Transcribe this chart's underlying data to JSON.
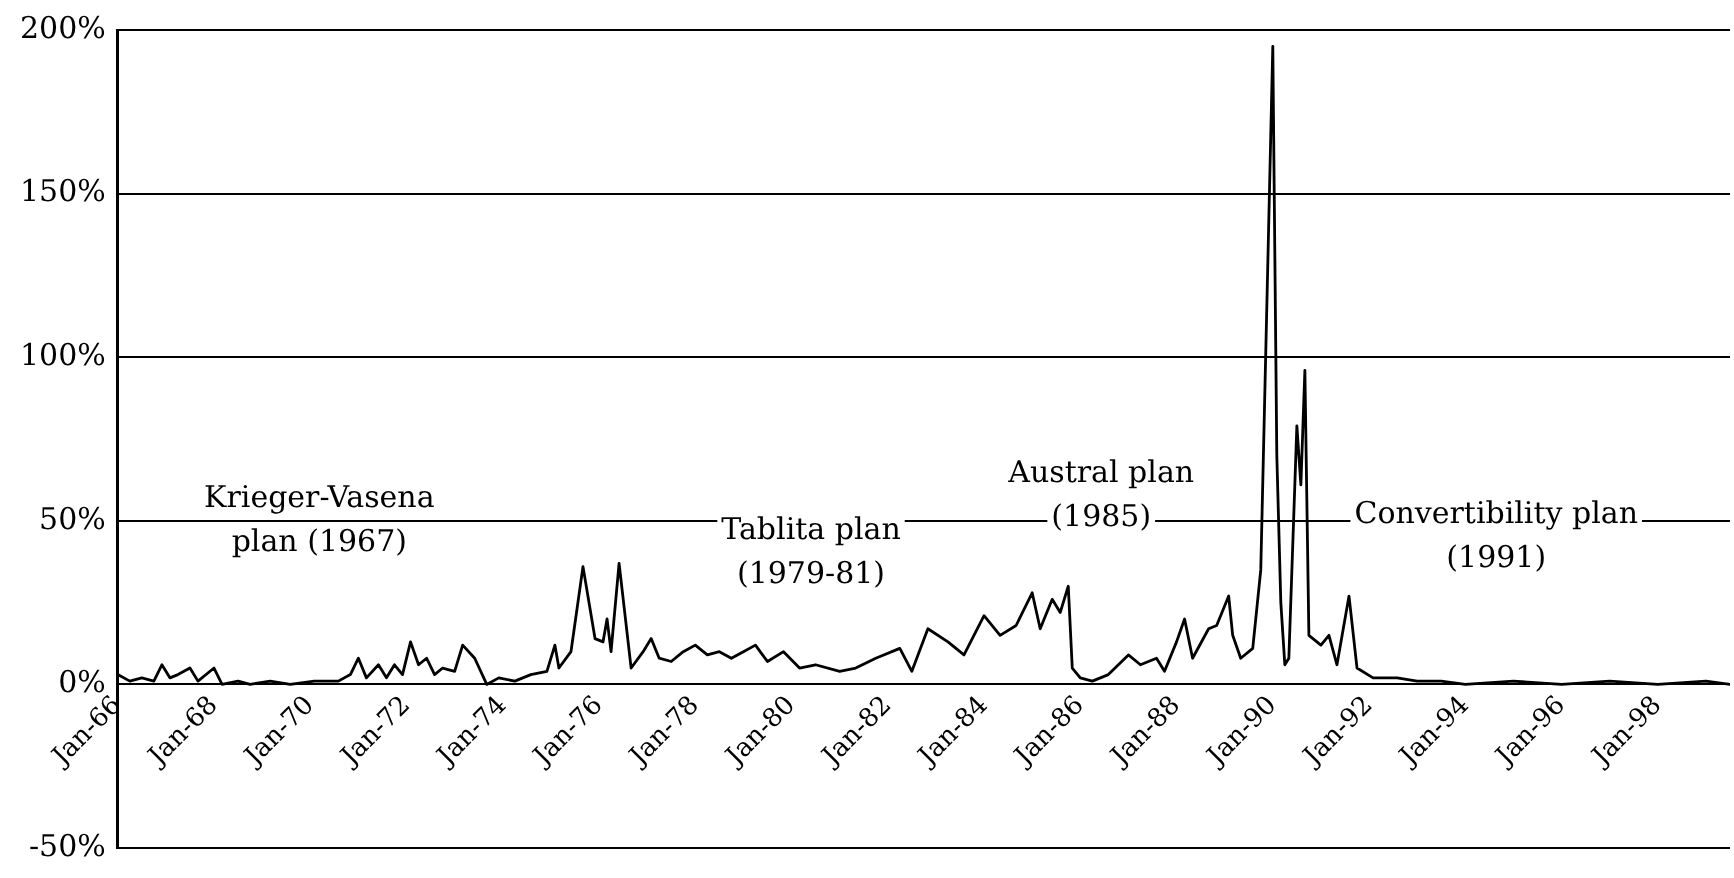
{
  "chart_data": {
    "type": "line",
    "color": "#000000",
    "marker": "none",
    "line_style": "solid",
    "grid": "y",
    "legend": false,
    "xlim": [
      "1966-01",
      "1999-07"
    ],
    "xticks": [
      {
        "value": "1966-01",
        "label": "Jan-66"
      },
      {
        "value": "1968-01",
        "label": "Jan-68"
      },
      {
        "value": "1970-01",
        "label": "Jan-70"
      },
      {
        "value": "1972-01",
        "label": "Jan-72"
      },
      {
        "value": "1974-01",
        "label": "Jan-74"
      },
      {
        "value": "1976-01",
        "label": "Jan-76"
      },
      {
        "value": "1978-01",
        "label": "Jan-78"
      },
      {
        "value": "1980-01",
        "label": "Jan-80"
      },
      {
        "value": "1982-01",
        "label": "Jan-82"
      },
      {
        "value": "1984-01",
        "label": "Jan-84"
      },
      {
        "value": "1986-01",
        "label": "Jan-86"
      },
      {
        "value": "1988-01",
        "label": "Jan-88"
      },
      {
        "value": "1990-01",
        "label": "Jan-90"
      },
      {
        "value": "1992-01",
        "label": "Jan-92"
      },
      {
        "value": "1994-01",
        "label": "Jan-94"
      },
      {
        "value": "1996-01",
        "label": "Jan-96"
      },
      {
        "value": "1998-01",
        "label": "Jan-98"
      }
    ],
    "ylim": [
      -50,
      200
    ],
    "yticks": [
      {
        "value": -50,
        "label": "-50%"
      },
      {
        "value": 0,
        "label": "0%"
      },
      {
        "value": 50,
        "label": "50%"
      },
      {
        "value": 100,
        "label": "100%"
      },
      {
        "value": 150,
        "label": "150%"
      },
      {
        "value": 200,
        "label": "200%"
      }
    ],
    "x": [
      "1966-01",
      "1966-04",
      "1966-07",
      "1966-10",
      "1966-12",
      "1967-02",
      "1967-04",
      "1967-07",
      "1967-09",
      "1968-01",
      "1968-03",
      "1968-07",
      "1968-10",
      "1969-03",
      "1969-08",
      "1970-02",
      "1970-08",
      "1970-11",
      "1971-01",
      "1971-03",
      "1971-06",
      "1971-08",
      "1971-10",
      "1971-12",
      "1972-02",
      "1972-04",
      "1972-06",
      "1972-08",
      "1972-10",
      "1973-01",
      "1973-03",
      "1973-06",
      "1973-09",
      "1973-12",
      "1974-04",
      "1974-08",
      "1974-12",
      "1975-02",
      "1975-03",
      "1975-06",
      "1975-09",
      "1975-12",
      "1976-02",
      "1976-03",
      "1976-04",
      "1976-06",
      "1976-09",
      "1976-12",
      "1977-02",
      "1977-04",
      "1977-07",
      "1977-10",
      "1978-01",
      "1978-04",
      "1978-07",
      "1978-10",
      "1979-01",
      "1979-04",
      "1979-07",
      "1979-11",
      "1980-03",
      "1980-07",
      "1981-01",
      "1981-05",
      "1981-10",
      "1982-04",
      "1982-07",
      "1982-11",
      "1983-04",
      "1983-08",
      "1984-01",
      "1984-05",
      "1984-09",
      "1985-01",
      "1985-03",
      "1985-06",
      "1985-08",
      "1985-10",
      "1985-11",
      "1986-01",
      "1986-04",
      "1986-08",
      "1987-01",
      "1987-04",
      "1987-08",
      "1987-10",
      "1988-01",
      "1988-03",
      "1988-05",
      "1988-09",
      "1988-11",
      "1989-02",
      "1989-03",
      "1989-05",
      "1989-08",
      "1989-10",
      "1990-01",
      "1990-02",
      "1990-03",
      "1990-04",
      "1990-05",
      "1990-07",
      "1990-08",
      "1990-09",
      "1990-10",
      "1991-01",
      "1991-03",
      "1991-05",
      "1991-08",
      "1991-10",
      "1992-02",
      "1992-08",
      "1993-01",
      "1993-07",
      "1994-01",
      "1995-01",
      "1996-01",
      "1997-01",
      "1998-01",
      "1999-01",
      "1999-07"
    ],
    "values": [
      3,
      1,
      2,
      1,
      6,
      2,
      3,
      5,
      1,
      5,
      0,
      1,
      0,
      1,
      0,
      1,
      1,
      3,
      8,
      2,
      6,
      2,
      6,
      3,
      13,
      6,
      8,
      3,
      5,
      4,
      12,
      8,
      0,
      2,
      1,
      3,
      4,
      12,
      5,
      10,
      36,
      14,
      13,
      20,
      10,
      37,
      5,
      10,
      14,
      8,
      7,
      10,
      12,
      9,
      10,
      8,
      10,
      12,
      7,
      10,
      5,
      6,
      4,
      5,
      8,
      11,
      4,
      17,
      13,
      9,
      21,
      15,
      18,
      28,
      17,
      26,
      22,
      30,
      5,
      2,
      1,
      3,
      9,
      6,
      8,
      4,
      13,
      20,
      8,
      17,
      18,
      27,
      15,
      8,
      11,
      35,
      195,
      70,
      25,
      6,
      8,
      79,
      61,
      96,
      15,
      12,
      15,
      6,
      27,
      5,
      2,
      2,
      1,
      1,
      0,
      1,
      0,
      1,
      0,
      1,
      0
    ],
    "annotations": [
      "Krieger-Vasena\nplan (1967)",
      "Tablita plan\n(1979-81)",
      "Austral plan\n(1985)",
      "Convertibility plan\n(1991)"
    ]
  }
}
